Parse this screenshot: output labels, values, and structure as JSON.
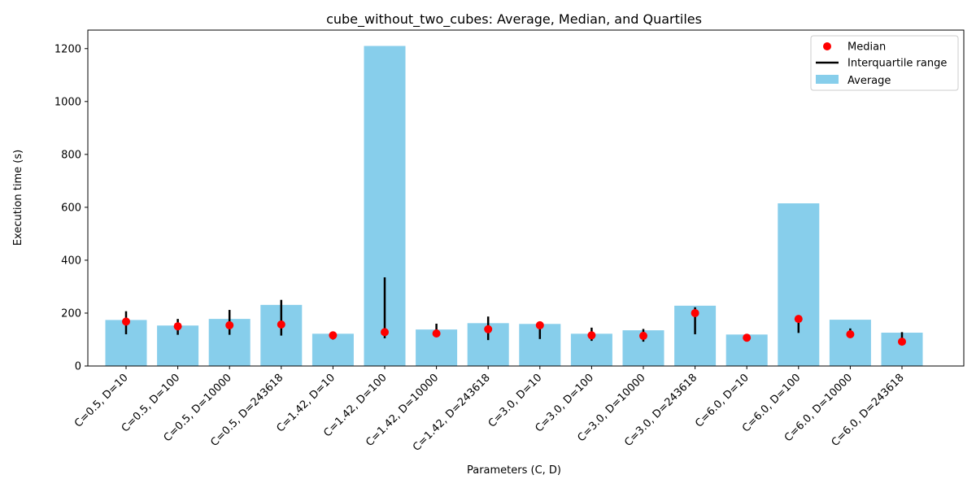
{
  "chart_data": {
    "type": "bar",
    "title": "cube_without_two_cubes: Average, Median, and Quartiles",
    "xlabel": "Parameters (C, D)",
    "ylabel": "Execution time (s)",
    "ylim": [
      0,
      1270
    ],
    "yticks": [
      0,
      200,
      400,
      600,
      800,
      1000,
      1200
    ],
    "grid": false,
    "legend_position": "top-right",
    "categories": [
      "C=0.5, D=10",
      "C=0.5, D=100",
      "C=0.5, D=10000",
      "C=0.5, D=243618",
      "C=1.42, D=10",
      "C=1.42, D=100",
      "C=1.42, D=10000",
      "C=1.42, D=243618",
      "C=3.0, D=10",
      "C=3.0, D=100",
      "C=3.0, D=10000",
      "C=3.0, D=243618",
      "C=6.0, D=10",
      "C=6.0, D=100",
      "C=6.0, D=10000",
      "C=6.0, D=243618"
    ],
    "series": [
      {
        "name": "Average",
        "kind": "bar",
        "color": "#87ceeb",
        "values": [
          174,
          153,
          178,
          231,
          122,
          1210,
          138,
          162,
          159,
          122,
          135,
          228,
          119,
          615,
          175,
          126
        ]
      },
      {
        "name": "Median",
        "kind": "point",
        "color": "#ff0000",
        "values": [
          168,
          150,
          154,
          157,
          116,
          128,
          123,
          139,
          154,
          116,
          114,
          200,
          107,
          178,
          120,
          92
        ]
      },
      {
        "name": "Interquartile range",
        "kind": "range",
        "color": "#000000",
        "q1": [
          120,
          118,
          118,
          115,
          100,
          105,
          115,
          98,
          102,
          95,
          92,
          120,
          100,
          125,
          110,
          85
        ],
        "q3": [
          207,
          178,
          212,
          250,
          130,
          335,
          160,
          187,
          165,
          145,
          140,
          222,
          120,
          185,
          142,
          128
        ]
      }
    ]
  },
  "legend": {
    "median": "Median",
    "iqr": "Interquartile range",
    "average": "Average"
  }
}
